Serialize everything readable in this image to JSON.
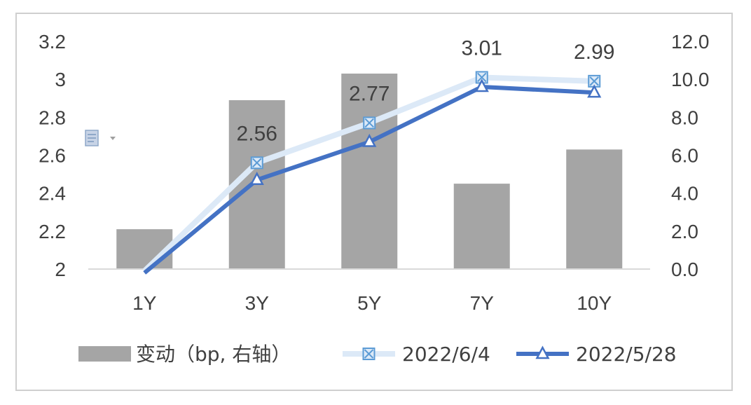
{
  "chart_data": {
    "type": "bar+line",
    "categories": [
      "1Y",
      "3Y",
      "5Y",
      "7Y",
      "10Y"
    ],
    "bar_series": {
      "name": "变动（bp, 右轴）",
      "axis": "right",
      "values": [
        2.1,
        8.9,
        10.3,
        4.5,
        6.3
      ],
      "color": "#a5a5a5"
    },
    "line_series": [
      {
        "name": "2022/6/4",
        "axis": "left",
        "values": [
          1.99,
          2.56,
          2.77,
          3.01,
          2.99
        ],
        "data_labels": [
          "",
          "2.56",
          "2.77",
          "3.01",
          "2.99"
        ],
        "color": "#dce9f7",
        "marker_color": "#5b9bd5",
        "marker": "x-square"
      },
      {
        "name": "2022/5/28",
        "axis": "left",
        "values": [
          1.98,
          2.47,
          2.67,
          2.96,
          2.93
        ],
        "color": "#4472c4",
        "marker": "triangle"
      }
    ],
    "left_axis": {
      "ylim": [
        2,
        3.2
      ],
      "ticks": [
        "2",
        "2.2",
        "2.4",
        "2.6",
        "2.8",
        "3",
        "3.2"
      ]
    },
    "right_axis": {
      "ylim": [
        0,
        12
      ],
      "ticks": [
        "0.0",
        "2.0",
        "4.0",
        "6.0",
        "8.0",
        "10.0",
        "12.0"
      ]
    },
    "grid": false,
    "legend_position": "bottom"
  },
  "paste_icon": {
    "icon": "paste-options-icon",
    "color": "#8fa8c8"
  }
}
